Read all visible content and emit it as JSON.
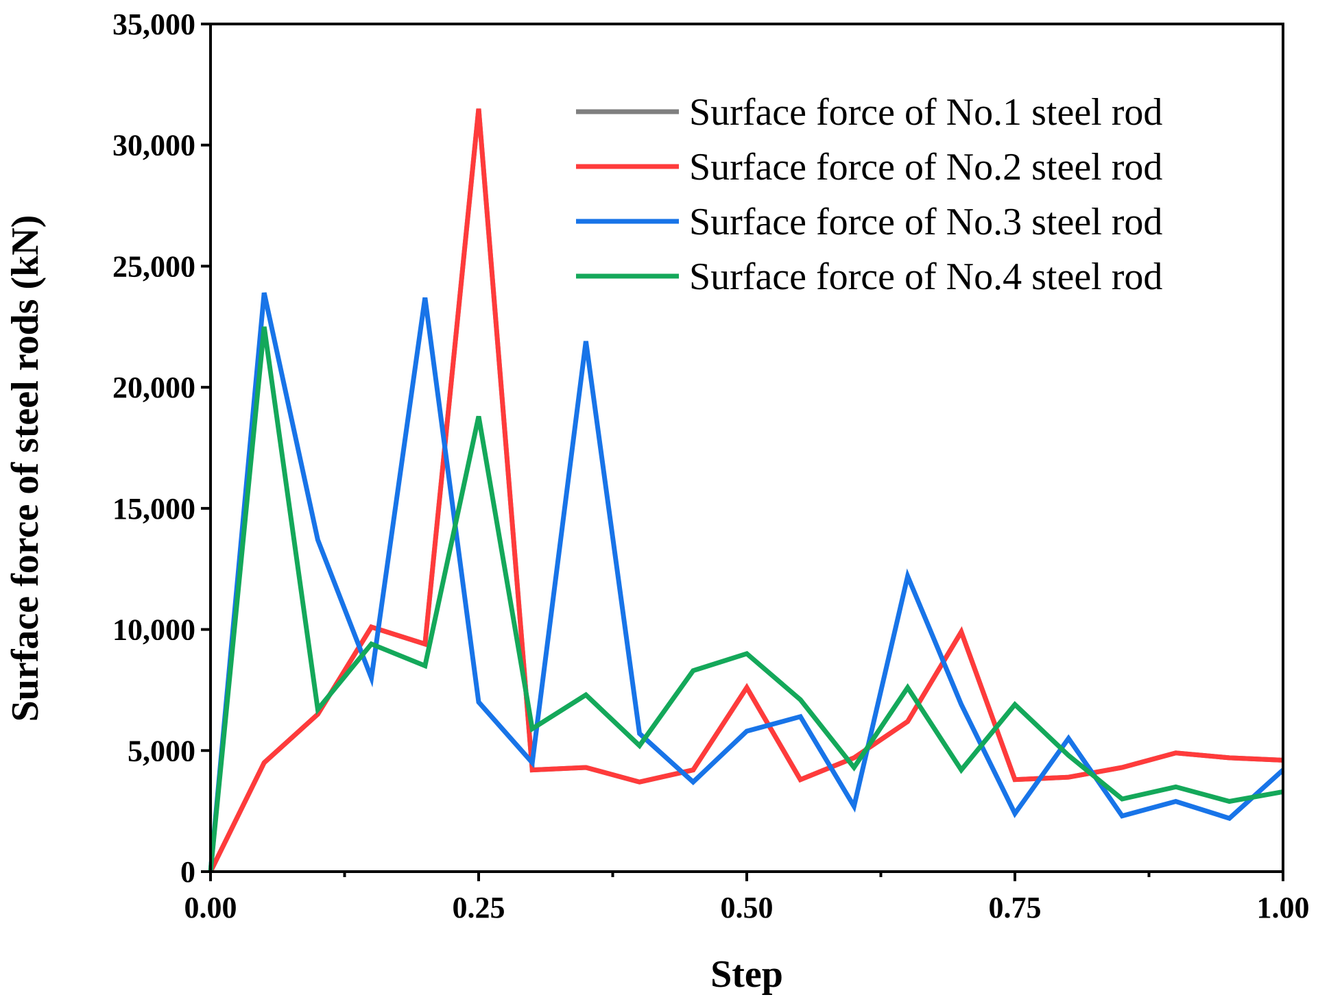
{
  "chart_data": {
    "type": "line",
    "title": "",
    "xlabel": "Step",
    "ylabel": "Surface force of steel rods (kN)",
    "xlim": [
      0,
      1
    ],
    "ylim": [
      0,
      35000
    ],
    "x_ticks": [
      0,
      0.25,
      0.5,
      0.75,
      1.0
    ],
    "x_tick_labels": [
      "0.00",
      "0.25",
      "0.50",
      "0.75",
      "1.00"
    ],
    "x_minor_ticks": [
      0.125,
      0.375,
      0.625,
      0.875
    ],
    "y_ticks": [
      0,
      5000,
      10000,
      15000,
      20000,
      25000,
      30000,
      35000
    ],
    "y_tick_labels": [
      "0",
      "5,000",
      "10,000",
      "15,000",
      "20,000",
      "25,000",
      "30,000",
      "35,000"
    ],
    "legend_position": "top-right",
    "grid": false,
    "x": [
      0,
      0.05,
      0.1,
      0.15,
      0.2,
      0.25,
      0.3,
      0.35,
      0.4,
      0.45,
      0.5,
      0.55,
      0.6,
      0.65,
      0.7,
      0.75,
      0.8,
      0.85,
      0.9,
      0.95,
      1.0
    ],
    "series": [
      {
        "name": "Surface force of No.1 steel rod",
        "color": "#7f7f7f",
        "values": [
          0,
          4500,
          6500,
          10100,
          9400,
          31500,
          4200,
          4300,
          3700,
          4200,
          7600,
          3800,
          4700,
          6200,
          9900,
          3800,
          3900,
          4300,
          4900,
          4700,
          4600
        ]
      },
      {
        "name": "Surface force of No.2 steel rod",
        "color": "#ff3b3b",
        "values": [
          0,
          4500,
          6500,
          10100,
          9400,
          31500,
          4200,
          4300,
          3700,
          4200,
          7600,
          3800,
          4700,
          6200,
          9900,
          3800,
          3900,
          4300,
          4900,
          4700,
          4600
        ]
      },
      {
        "name": "Surface force of No.3 steel rod",
        "color": "#1874e8",
        "values": [
          0,
          23900,
          13700,
          8000,
          23700,
          7000,
          4500,
          21900,
          5700,
          3700,
          5800,
          6400,
          2700,
          12200,
          6900,
          2400,
          5500,
          2300,
          2900,
          2200,
          4200
        ]
      },
      {
        "name": "Surface force of No.4 steel rod",
        "color": "#14a85a",
        "values": [
          0,
          22500,
          6700,
          9400,
          8500,
          18800,
          5900,
          7300,
          5200,
          8300,
          9000,
          7100,
          4300,
          7600,
          4200,
          6900,
          4800,
          3000,
          3500,
          2900,
          3300
        ]
      }
    ]
  }
}
